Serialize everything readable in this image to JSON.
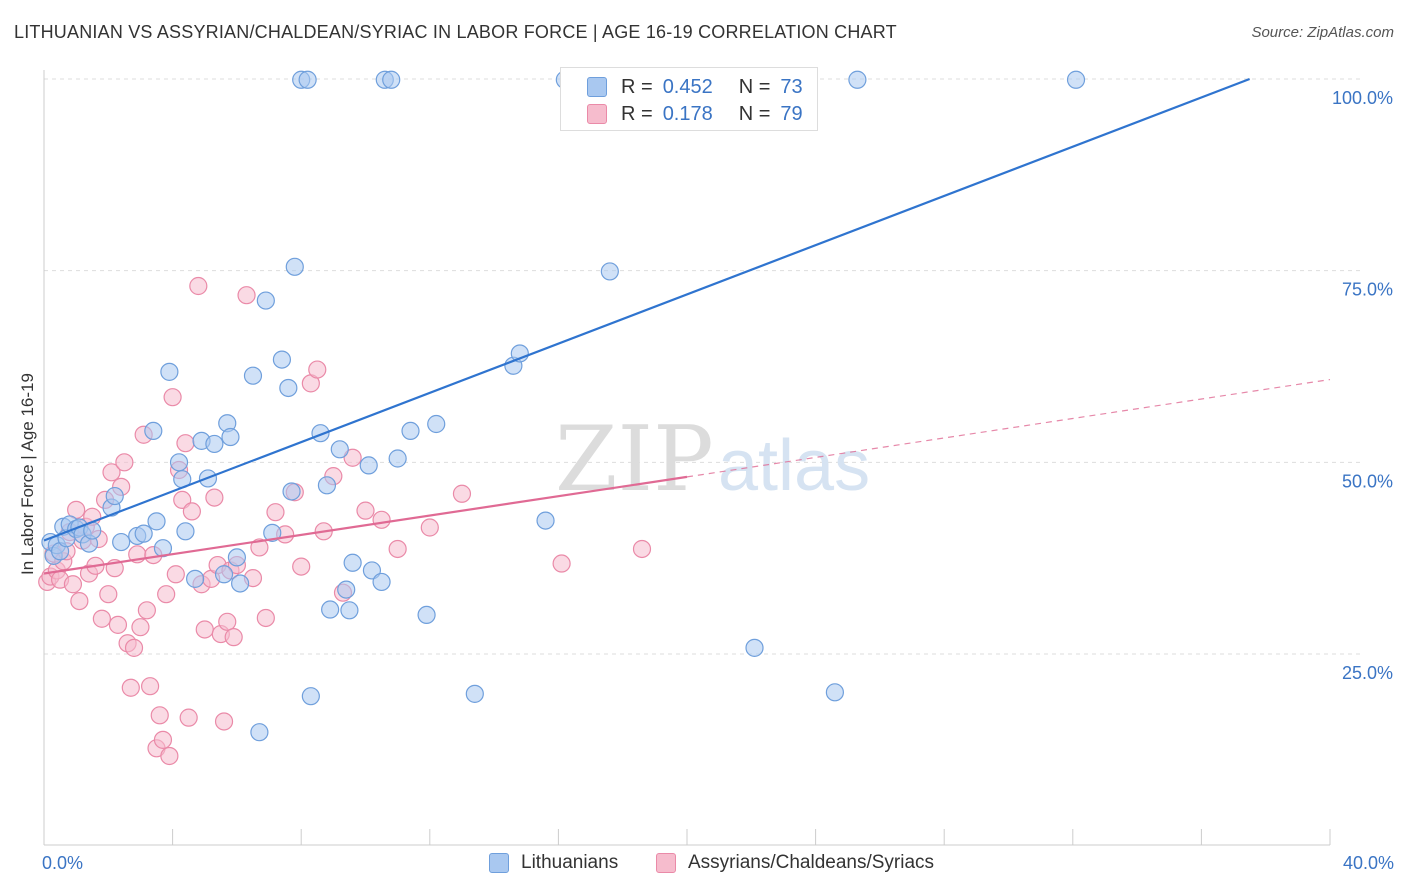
{
  "title": "LITHUANIAN VS ASSYRIAN/CHALDEAN/SYRIAC IN LABOR FORCE | AGE 16-19 CORRELATION CHART",
  "source": "Source: ZipAtlas.com",
  "watermark": {
    "zip": "ZIP",
    "atlas": "atlas"
  },
  "legend_top": [
    {
      "r_label": "R =",
      "r_value": "0.452",
      "n_label": "N =",
      "n_value": "73"
    },
    {
      "r_label": "R =",
      "r_value": "0.178",
      "n_label": "N =",
      "n_value": "79"
    }
  ],
  "chart_data": {
    "type": "scatter",
    "title": "LITHUANIAN VS ASSYRIAN/CHALDEAN/SYRIAC IN LABOR FORCE | AGE 16-19 CORRELATION CHART",
    "xlabel": "",
    "ylabel": "In Labor Force | Age 16-19",
    "xlim": [
      0,
      40
    ],
    "ylim": [
      0,
      105
    ],
    "x_tick_labels": [
      "0.0%",
      "40.0%"
    ],
    "y_ticks": [
      25,
      50,
      75,
      100
    ],
    "y_tick_labels": [
      "25.0%",
      "50.0%",
      "75.0%",
      "100.0%"
    ],
    "grid": true,
    "legend_position": "bottom",
    "colors": {
      "lithuanians_fill": "#a9c8f0",
      "lithuanians_stroke": "#6f9fdc",
      "lithuanians_line": "#2f74cf",
      "assyrians_fill": "#f6bccd",
      "assyrians_stroke": "#ea8aa8",
      "assyrians_line": "#e06a94"
    },
    "series": [
      {
        "name": "Lithuanians",
        "trend": {
          "x": [
            0,
            37.5
          ],
          "y": [
            39.8,
            100
          ]
        },
        "points": [
          [
            0.2,
            39.6
          ],
          [
            0.3,
            37.8
          ],
          [
            0.4,
            39.2
          ],
          [
            0.5,
            38.4
          ],
          [
            0.6,
            41.6
          ],
          [
            0.7,
            40.1
          ],
          [
            0.8,
            41.9
          ],
          [
            1.0,
            41.3
          ],
          [
            1.1,
            41.5
          ],
          [
            1.2,
            40.6
          ],
          [
            1.4,
            39.4
          ],
          [
            1.5,
            41.1
          ],
          [
            2.1,
            44.1
          ],
          [
            2.2,
            45.6
          ],
          [
            2.4,
            39.6
          ],
          [
            2.9,
            40.4
          ],
          [
            3.1,
            40.7
          ],
          [
            3.4,
            54.1
          ],
          [
            3.5,
            42.3
          ],
          [
            3.7,
            38.8
          ],
          [
            3.9,
            61.8
          ],
          [
            4.2,
            50.0
          ],
          [
            4.3,
            47.8
          ],
          [
            4.4,
            41.0
          ],
          [
            4.7,
            34.8
          ],
          [
            4.9,
            52.8
          ],
          [
            5.1,
            47.9
          ],
          [
            5.3,
            52.4
          ],
          [
            5.6,
            35.4
          ],
          [
            5.7,
            55.1
          ],
          [
            5.8,
            53.3
          ],
          [
            6.0,
            37.6
          ],
          [
            6.1,
            34.2
          ],
          [
            6.5,
            61.3
          ],
          [
            6.7,
            14.8
          ],
          [
            6.9,
            71.1
          ],
          [
            7.1,
            40.8
          ],
          [
            7.4,
            63.4
          ],
          [
            7.6,
            59.7
          ],
          [
            7.7,
            46.2
          ],
          [
            7.8,
            75.5
          ],
          [
            8.0,
            99.9
          ],
          [
            8.2,
            99.9
          ],
          [
            8.3,
            19.5
          ],
          [
            8.6,
            53.8
          ],
          [
            8.8,
            47.0
          ],
          [
            8.9,
            30.8
          ],
          [
            9.2,
            51.7
          ],
          [
            9.4,
            33.4
          ],
          [
            9.5,
            30.7
          ],
          [
            9.6,
            36.9
          ],
          [
            10.1,
            49.6
          ],
          [
            10.2,
            35.9
          ],
          [
            10.5,
            34.4
          ],
          [
            10.6,
            99.9
          ],
          [
            10.8,
            99.9
          ],
          [
            11.0,
            50.5
          ],
          [
            11.4,
            54.1
          ],
          [
            11.9,
            30.1
          ],
          [
            12.2,
            55.0
          ],
          [
            13.4,
            19.8
          ],
          [
            14.6,
            62.6
          ],
          [
            14.8,
            64.2
          ],
          [
            15.6,
            42.4
          ],
          [
            16.2,
            99.9
          ],
          [
            17.6,
            74.9
          ],
          [
            19.0,
            99.9
          ],
          [
            19.2,
            99.9
          ],
          [
            20.8,
            99.9
          ],
          [
            22.1,
            25.8
          ],
          [
            24.6,
            20.0
          ],
          [
            25.3,
            99.9
          ],
          [
            32.1,
            99.9
          ]
        ]
      },
      {
        "name": "Assyrians/Chaldeans/Syriacs",
        "trend": {
          "x": [
            0,
            20
          ],
          "y": [
            35.5,
            48.1
          ]
        },
        "trend_extension": {
          "x": [
            20,
            40
          ],
          "y": [
            48.1,
            60.8
          ]
        },
        "points": [
          [
            0.1,
            34.4
          ],
          [
            0.2,
            35.1
          ],
          [
            0.3,
            38.1
          ],
          [
            0.4,
            35.9
          ],
          [
            0.5,
            34.7
          ],
          [
            0.6,
            37.1
          ],
          [
            0.7,
            38.4
          ],
          [
            0.8,
            40.9
          ],
          [
            0.9,
            34.1
          ],
          [
            1.0,
            43.8
          ],
          [
            1.1,
            31.9
          ],
          [
            1.2,
            39.8
          ],
          [
            1.3,
            41.6
          ],
          [
            1.4,
            35.5
          ],
          [
            1.5,
            42.9
          ],
          [
            1.6,
            36.5
          ],
          [
            1.7,
            40.0
          ],
          [
            1.8,
            29.6
          ],
          [
            1.9,
            45.1
          ],
          [
            2.0,
            32.8
          ],
          [
            2.1,
            48.7
          ],
          [
            2.2,
            36.2
          ],
          [
            2.3,
            28.8
          ],
          [
            2.4,
            46.8
          ],
          [
            2.5,
            50.0
          ],
          [
            2.6,
            26.4
          ],
          [
            2.7,
            20.6
          ],
          [
            2.8,
            25.8
          ],
          [
            2.9,
            38.0
          ],
          [
            3.0,
            28.5
          ],
          [
            3.1,
            53.6
          ],
          [
            3.2,
            30.7
          ],
          [
            3.3,
            20.8
          ],
          [
            3.4,
            37.9
          ],
          [
            3.5,
            12.7
          ],
          [
            3.6,
            17.0
          ],
          [
            3.7,
            13.8
          ],
          [
            3.8,
            32.8
          ],
          [
            3.9,
            11.7
          ],
          [
            4.0,
            58.5
          ],
          [
            4.1,
            35.4
          ],
          [
            4.2,
            49.0
          ],
          [
            4.3,
            45.1
          ],
          [
            4.4,
            52.5
          ],
          [
            4.5,
            16.7
          ],
          [
            4.6,
            43.6
          ],
          [
            4.8,
            73.0
          ],
          [
            4.9,
            34.1
          ],
          [
            5.0,
            28.2
          ],
          [
            5.2,
            34.8
          ],
          [
            5.3,
            45.4
          ],
          [
            5.4,
            36.6
          ],
          [
            5.5,
            27.6
          ],
          [
            5.6,
            16.2
          ],
          [
            5.7,
            29.2
          ],
          [
            5.8,
            35.9
          ],
          [
            5.9,
            27.2
          ],
          [
            6.0,
            36.6
          ],
          [
            6.3,
            71.8
          ],
          [
            6.5,
            34.9
          ],
          [
            6.7,
            38.9
          ],
          [
            6.9,
            29.7
          ],
          [
            7.2,
            43.5
          ],
          [
            7.5,
            40.6
          ],
          [
            7.8,
            46.1
          ],
          [
            8.0,
            36.4
          ],
          [
            8.3,
            60.3
          ],
          [
            8.5,
            62.1
          ],
          [
            8.7,
            41.0
          ],
          [
            9.0,
            48.2
          ],
          [
            9.3,
            33.0
          ],
          [
            9.6,
            50.6
          ],
          [
            10.0,
            43.7
          ],
          [
            10.5,
            42.5
          ],
          [
            11.0,
            38.7
          ],
          [
            12.0,
            41.5
          ],
          [
            13.0,
            45.9
          ],
          [
            16.1,
            36.8
          ],
          [
            18.6,
            38.7
          ]
        ]
      }
    ]
  },
  "legend_bottom": [
    {
      "label": "Lithuanians"
    },
    {
      "label": "Assyrians/Chaldeans/Syriacs"
    }
  ]
}
